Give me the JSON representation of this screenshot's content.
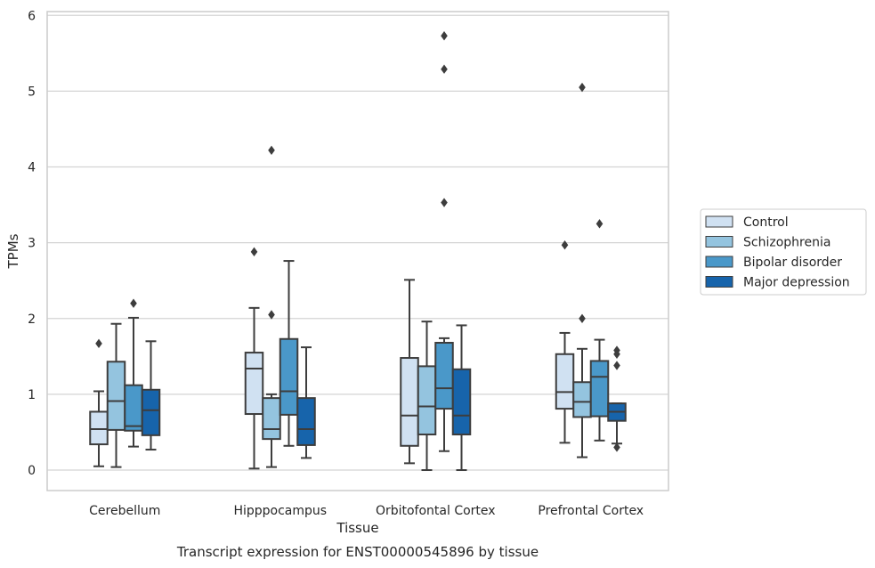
{
  "chart_data": {
    "type": "box",
    "xlabel": "Tissue",
    "ylabel": "TPMs",
    "caption": "Transcript expression for ENST00000545896 by tissue",
    "ylim": [
      -0.27,
      6.05
    ],
    "yticks": [
      0,
      1,
      2,
      3,
      4,
      5,
      6
    ],
    "grid": "horizontal",
    "legend_placement": "outside-right",
    "categories": [
      "Cerebellum",
      "Hipppocampus",
      "Orbitofontal Cortex",
      "Prefrontal Cortex"
    ],
    "series": [
      {
        "name": "Control",
        "color": "#d0e1f2",
        "boxes": [
          {
            "whisker_low": 0.05,
            "q1": 0.34,
            "median": 0.54,
            "q3": 0.77,
            "whisker_high": 1.04,
            "outliers": [
              1.67
            ]
          },
          {
            "whisker_low": 0.02,
            "q1": 0.74,
            "median": 1.34,
            "q3": 1.55,
            "whisker_high": 2.14,
            "outliers": [
              2.88
            ]
          },
          {
            "whisker_low": 0.09,
            "q1": 0.32,
            "median": 0.72,
            "q3": 1.48,
            "whisker_high": 2.51,
            "outliers": []
          },
          {
            "whisker_low": 0.36,
            "q1": 0.81,
            "median": 1.03,
            "q3": 1.53,
            "whisker_high": 1.81,
            "outliers": [
              2.97
            ]
          }
        ]
      },
      {
        "name": "Schizophrenia",
        "color": "#94c4df",
        "boxes": [
          {
            "whisker_low": 0.04,
            "q1": 0.53,
            "median": 0.91,
            "q3": 1.43,
            "whisker_high": 1.93,
            "outliers": []
          },
          {
            "whisker_low": 0.04,
            "q1": 0.41,
            "median": 0.54,
            "q3": 0.95,
            "whisker_high": 1.0,
            "outliers": [
              4.22,
              2.05
            ]
          },
          {
            "whisker_low": 0.0,
            "q1": 0.47,
            "median": 0.84,
            "q3": 1.37,
            "whisker_high": 1.96,
            "outliers": []
          },
          {
            "whisker_low": 0.17,
            "q1": 0.7,
            "median": 0.9,
            "q3": 1.16,
            "whisker_high": 1.6,
            "outliers": [
              5.05,
              2.0
            ]
          }
        ]
      },
      {
        "name": "Bipolar disorder",
        "color": "#4a98c9",
        "boxes": [
          {
            "whisker_low": 0.31,
            "q1": 0.52,
            "median": 0.58,
            "q3": 1.12,
            "whisker_high": 2.01,
            "outliers": [
              2.2
            ]
          },
          {
            "whisker_low": 0.32,
            "q1": 0.73,
            "median": 1.04,
            "q3": 1.73,
            "whisker_high": 2.76,
            "outliers": []
          },
          {
            "whisker_low": 0.25,
            "q1": 0.81,
            "median": 1.08,
            "q3": 1.68,
            "whisker_high": 1.74,
            "outliers": [
              5.73,
              5.29,
              3.53
            ]
          },
          {
            "whisker_low": 0.39,
            "q1": 0.71,
            "median": 1.23,
            "q3": 1.44,
            "whisker_high": 1.72,
            "outliers": [
              3.25
            ]
          }
        ]
      },
      {
        "name": "Major depression",
        "color": "#1764ab",
        "boxes": [
          {
            "whisker_low": 0.27,
            "q1": 0.46,
            "median": 0.79,
            "q3": 1.06,
            "whisker_high": 1.7,
            "outliers": []
          },
          {
            "whisker_low": 0.16,
            "q1": 0.33,
            "median": 0.54,
            "q3": 0.95,
            "whisker_high": 1.62,
            "outliers": []
          },
          {
            "whisker_low": 0.0,
            "q1": 0.47,
            "median": 0.72,
            "q3": 1.33,
            "whisker_high": 1.91,
            "outliers": []
          },
          {
            "whisker_low": 0.35,
            "q1": 0.65,
            "median": 0.77,
            "q3": 0.88,
            "whisker_high": 0.88,
            "outliers": [
              1.58,
              1.53,
              1.38,
              0.3
            ]
          }
        ]
      }
    ]
  }
}
